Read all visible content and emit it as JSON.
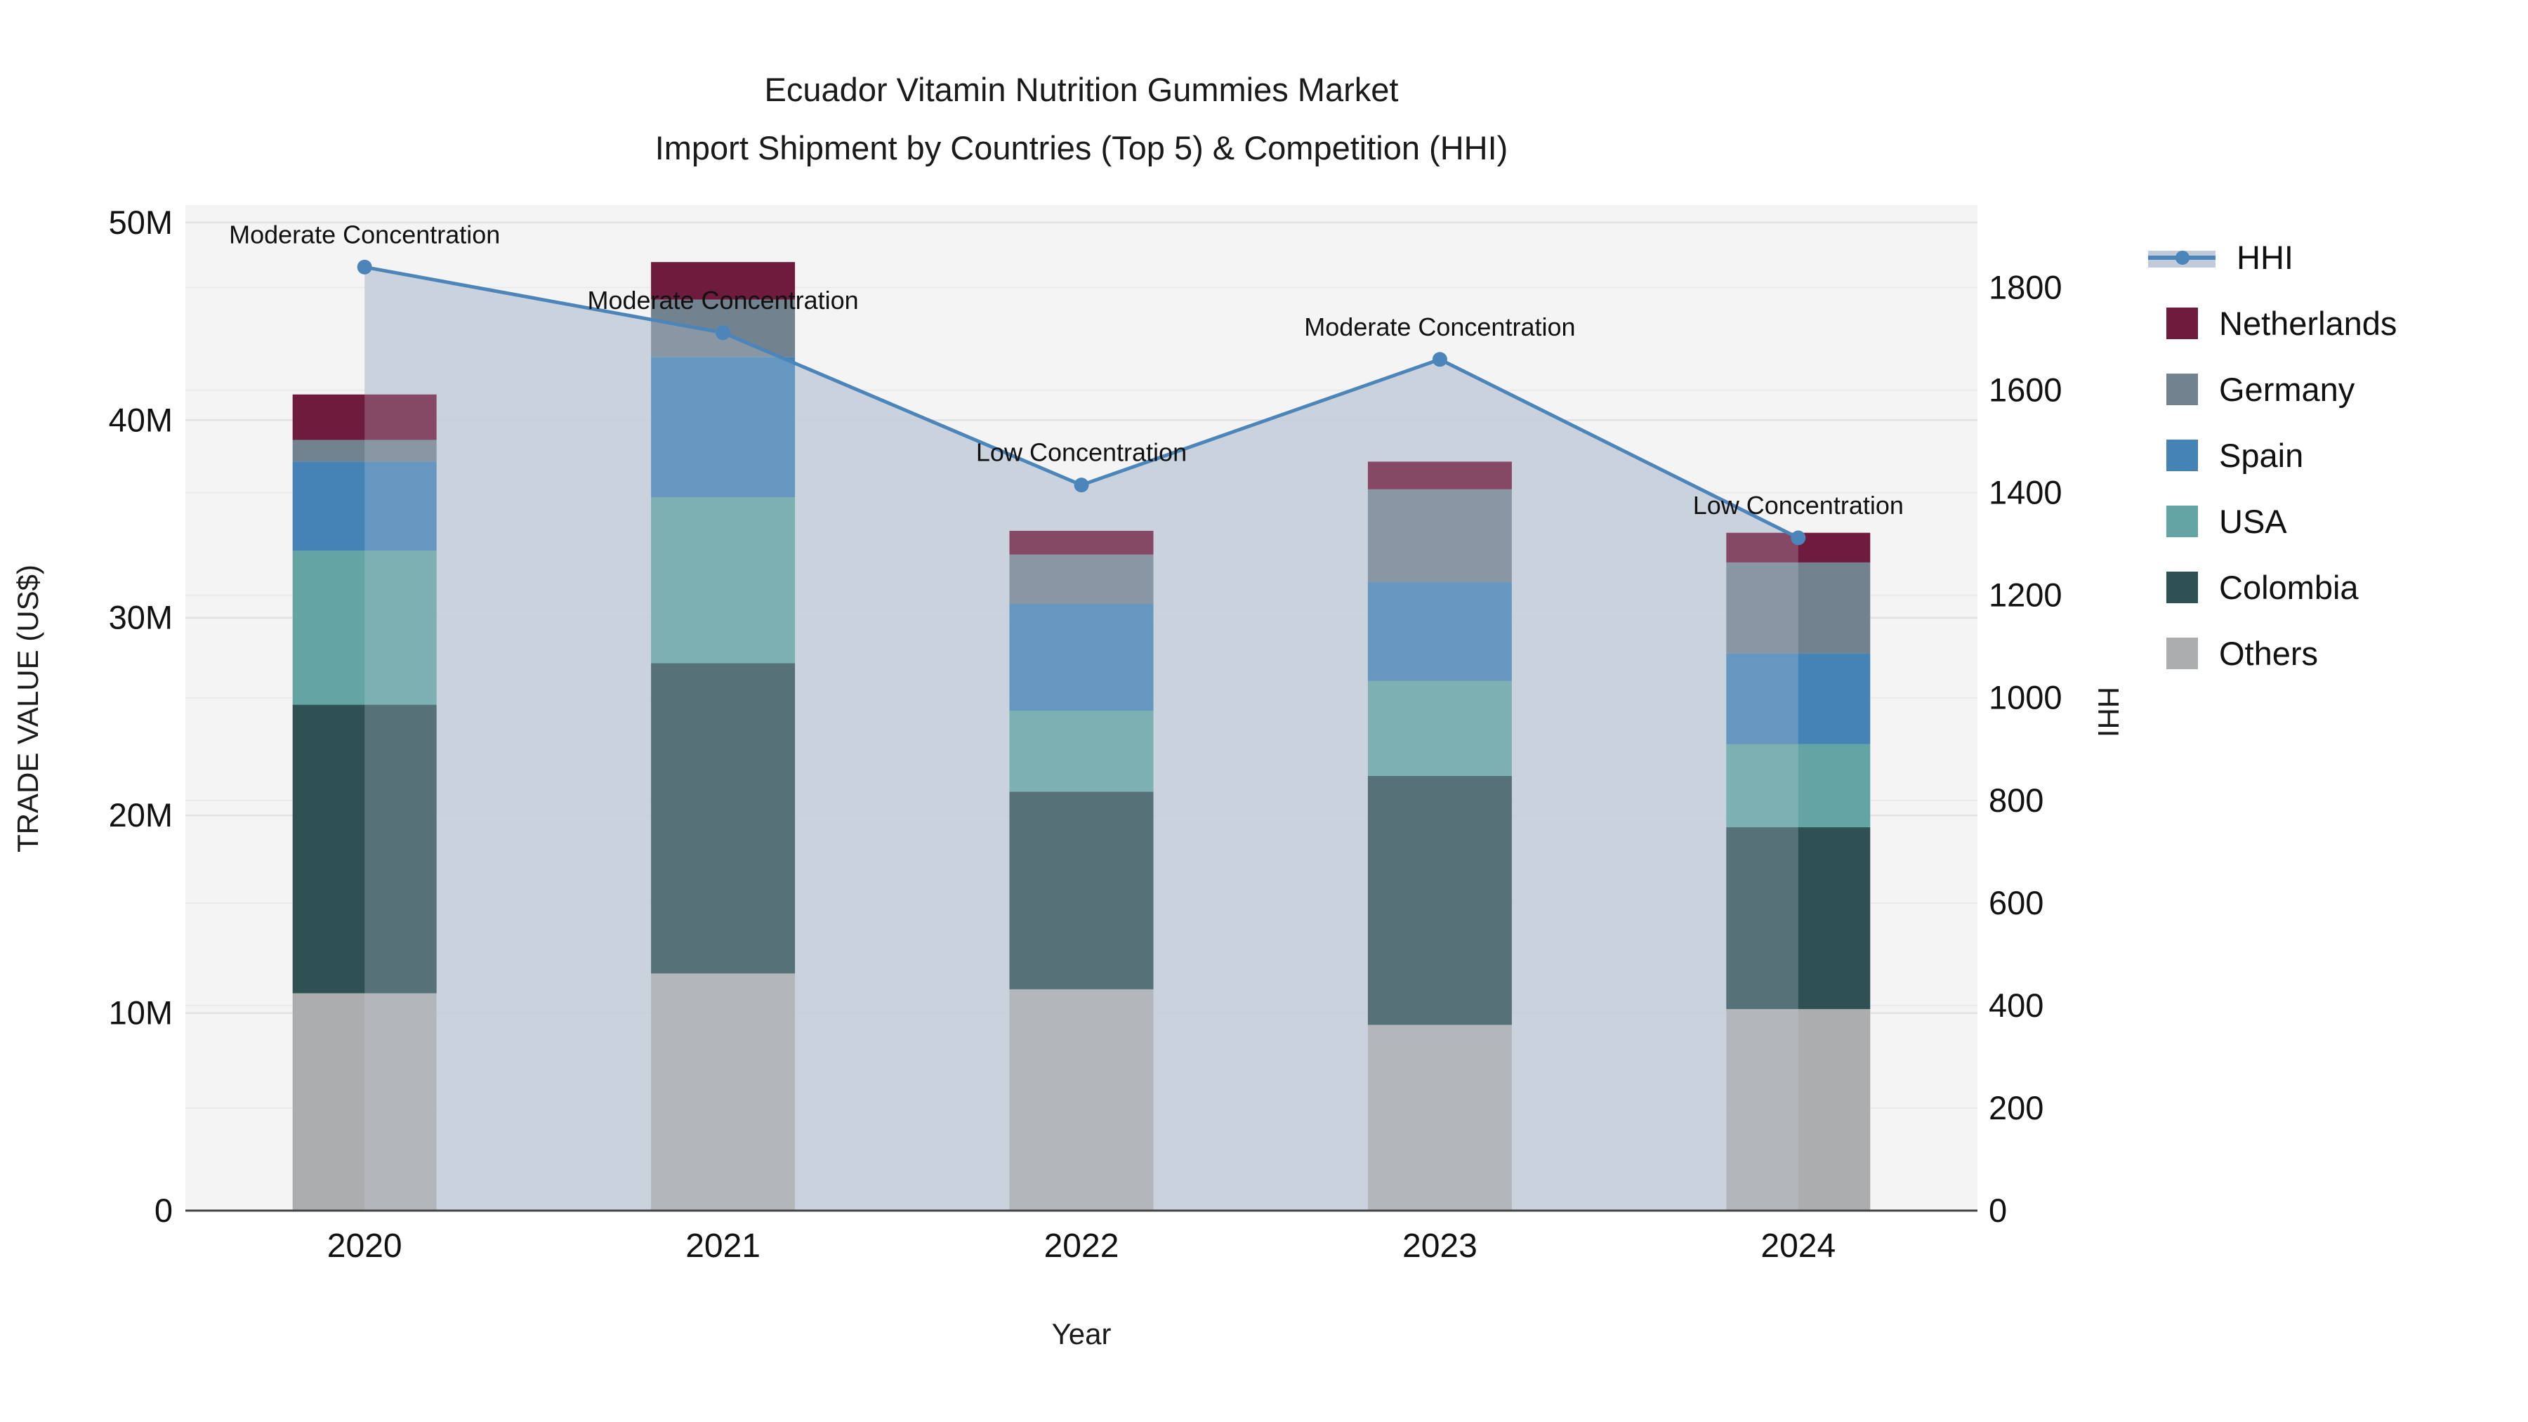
{
  "title": {
    "line1": "Ecuador Vitamin Nutrition Gummies Market",
    "line2": "Import Shipment by Countries (Top 5) & Competition (HHI)"
  },
  "axes": {
    "x_title": "Year",
    "y_left_title": "TRADE VALUE (US$)",
    "y_right_title": "HHI"
  },
  "colors": {
    "hhi_line": "#4b85b9",
    "area_fill": "#c2cbd9",
    "area_overlay": "#cdd4e0",
    "netherlands": "#6f1b3d",
    "germany": "#73828f",
    "spain": "#4583b7",
    "usa": "#63a5a5",
    "colombia": "#2f5154",
    "others": "#abadaf",
    "plot_bg": "#f4f4f4",
    "grid_major": "#e2e2e2",
    "grid_minor": "#eaeaea",
    "axis_line": "#444444",
    "text": "#111111"
  },
  "legend": {
    "items": [
      {
        "label": "HHI",
        "type": "line",
        "color": "#4b85b9",
        "band": "#c2cbd9"
      },
      {
        "label": "Netherlands",
        "type": "swatch",
        "color": "#6f1b3d"
      },
      {
        "label": "Germany",
        "type": "swatch",
        "color": "#73828f"
      },
      {
        "label": "Spain",
        "type": "swatch",
        "color": "#4583b7"
      },
      {
        "label": "USA",
        "type": "swatch",
        "color": "#63a5a5"
      },
      {
        "label": "Colombia",
        "type": "swatch",
        "color": "#2f5154"
      },
      {
        "label": "Others",
        "type": "swatch",
        "color": "#abadaf"
      }
    ]
  },
  "chart_data": {
    "type": "bar",
    "subtype": "stacked-bars-with-line",
    "title": "Ecuador Vitamin Nutrition Gummies Market — Import Shipment by Countries (Top 5) & Competition (HHI)",
    "xlabel": "Year",
    "categories": [
      "2020",
      "2021",
      "2022",
      "2023",
      "2024"
    ],
    "bar_value_unit": "USD millions (trade value)",
    "series": [
      {
        "name": "Others",
        "color": "#abadaf",
        "values": [
          11.0,
          12.0,
          11.2,
          9.4,
          10.2
        ]
      },
      {
        "name": "Colombia",
        "color": "#2f5154",
        "values": [
          14.6,
          15.7,
          10.0,
          12.6,
          9.2
        ]
      },
      {
        "name": "USA",
        "color": "#63a5a5",
        "values": [
          7.8,
          8.4,
          4.1,
          4.8,
          4.2
        ]
      },
      {
        "name": "Spain",
        "color": "#4583b7",
        "values": [
          4.5,
          7.1,
          5.4,
          5.0,
          4.6
        ]
      },
      {
        "name": "Germany",
        "color": "#73828f",
        "values": [
          1.1,
          2.9,
          2.5,
          4.7,
          4.6
        ]
      },
      {
        "name": "Netherlands",
        "color": "#6f1b3d",
        "values": [
          2.3,
          1.9,
          1.2,
          1.4,
          1.5
        ]
      }
    ],
    "bar_totals": [
      41.3,
      48.0,
      34.4,
      37.9,
      34.3
    ],
    "line_series": {
      "name": "HHI",
      "color": "#4b85b9",
      "area_fill": "#c2cbd9",
      "values": [
        1840,
        1712,
        1415,
        1660,
        1312
      ]
    },
    "annotations": [
      {
        "category": "2020",
        "text": "Moderate Concentration"
      },
      {
        "category": "2021",
        "text": "Moderate Concentration"
      },
      {
        "category": "2022",
        "text": "Low Concentration"
      },
      {
        "category": "2023",
        "text": "Moderate Concentration"
      },
      {
        "category": "2024",
        "text": "Low Concentration"
      }
    ],
    "y_left": {
      "label": "TRADE VALUE (US$)",
      "max": 50.6,
      "ticks": [
        0,
        10,
        20,
        30,
        40,
        50
      ],
      "tick_labels": [
        "0",
        "10M",
        "20M",
        "30M",
        "40M",
        "50M"
      ]
    },
    "y_right": {
      "label": "HHI",
      "max": 1950,
      "ticks": [
        0,
        200,
        400,
        600,
        800,
        1000,
        1200,
        1400,
        1600,
        1800
      ],
      "tick_labels": [
        "0",
        "200",
        "400",
        "600",
        "800",
        "1000",
        "1200",
        "1400",
        "1600",
        "1800"
      ]
    },
    "grid": true,
    "legend_position": "right"
  }
}
